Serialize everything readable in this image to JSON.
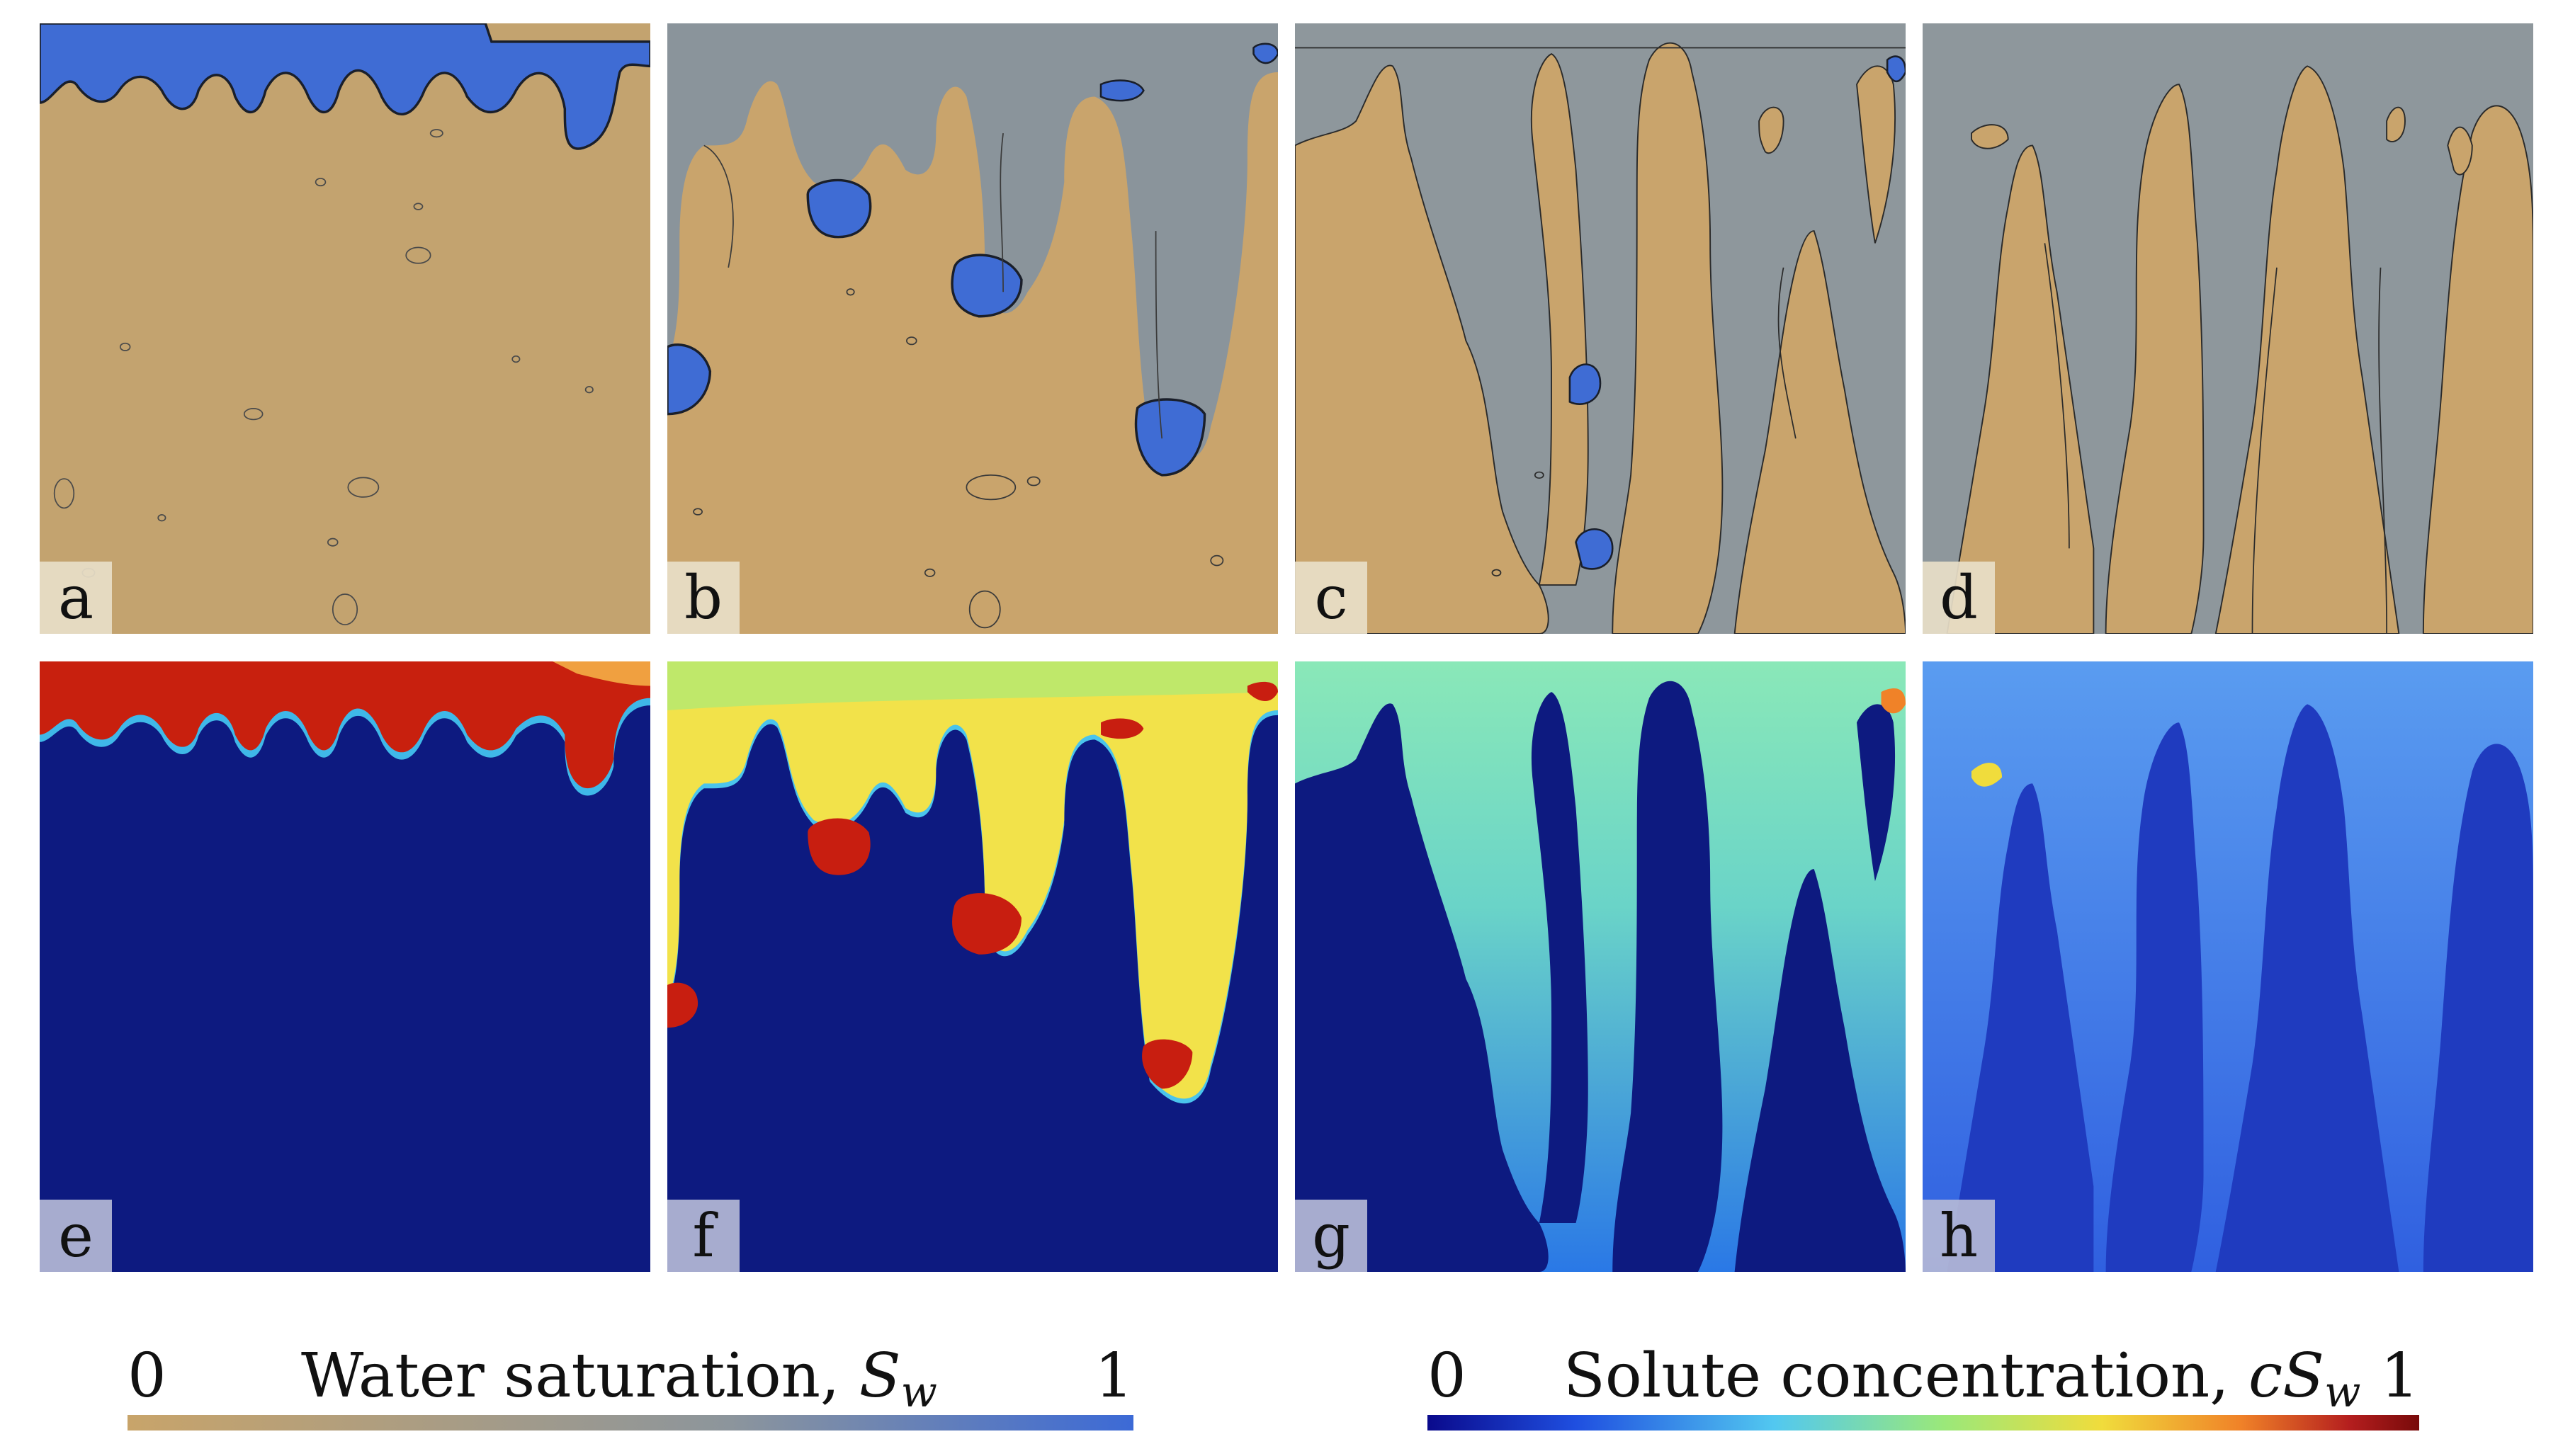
{
  "panels": [
    {
      "id": "a",
      "label": "a",
      "row": "saturation"
    },
    {
      "id": "b",
      "label": "b",
      "row": "saturation"
    },
    {
      "id": "c",
      "label": "c",
      "row": "saturation"
    },
    {
      "id": "d",
      "label": "d",
      "row": "saturation"
    },
    {
      "id": "e",
      "label": "e",
      "row": "concentration"
    },
    {
      "id": "f",
      "label": "f",
      "row": "concentration"
    },
    {
      "id": "g",
      "label": "g",
      "row": "concentration"
    },
    {
      "id": "h",
      "label": "h",
      "row": "concentration"
    }
  ],
  "colorbars": {
    "saturation": {
      "min": "0",
      "max": "1",
      "title": "Water saturation, ",
      "symbol": "S",
      "subscript": "w",
      "colors": {
        "low": "#c8a46a",
        "mid": "#8c959c",
        "high": "#3c6ad6"
      }
    },
    "concentration": {
      "min": "0",
      "max": "1",
      "title": "Solute concentration, ",
      "symbol": "cS",
      "subscript": "w",
      "colors": [
        "#0a0a8c",
        "#1f4fe0",
        "#52c8f0",
        "#9ae87a",
        "#f0dc3c",
        "#f08228",
        "#b41e1e",
        "#780a0a"
      ]
    }
  },
  "colors": {
    "sat_dry": "#c8a46a",
    "sat_partial": "#8e989c",
    "sat_wet": "#3c6ad6",
    "conc_zero": "#0d1a80",
    "conc_high": "#c41e10"
  }
}
